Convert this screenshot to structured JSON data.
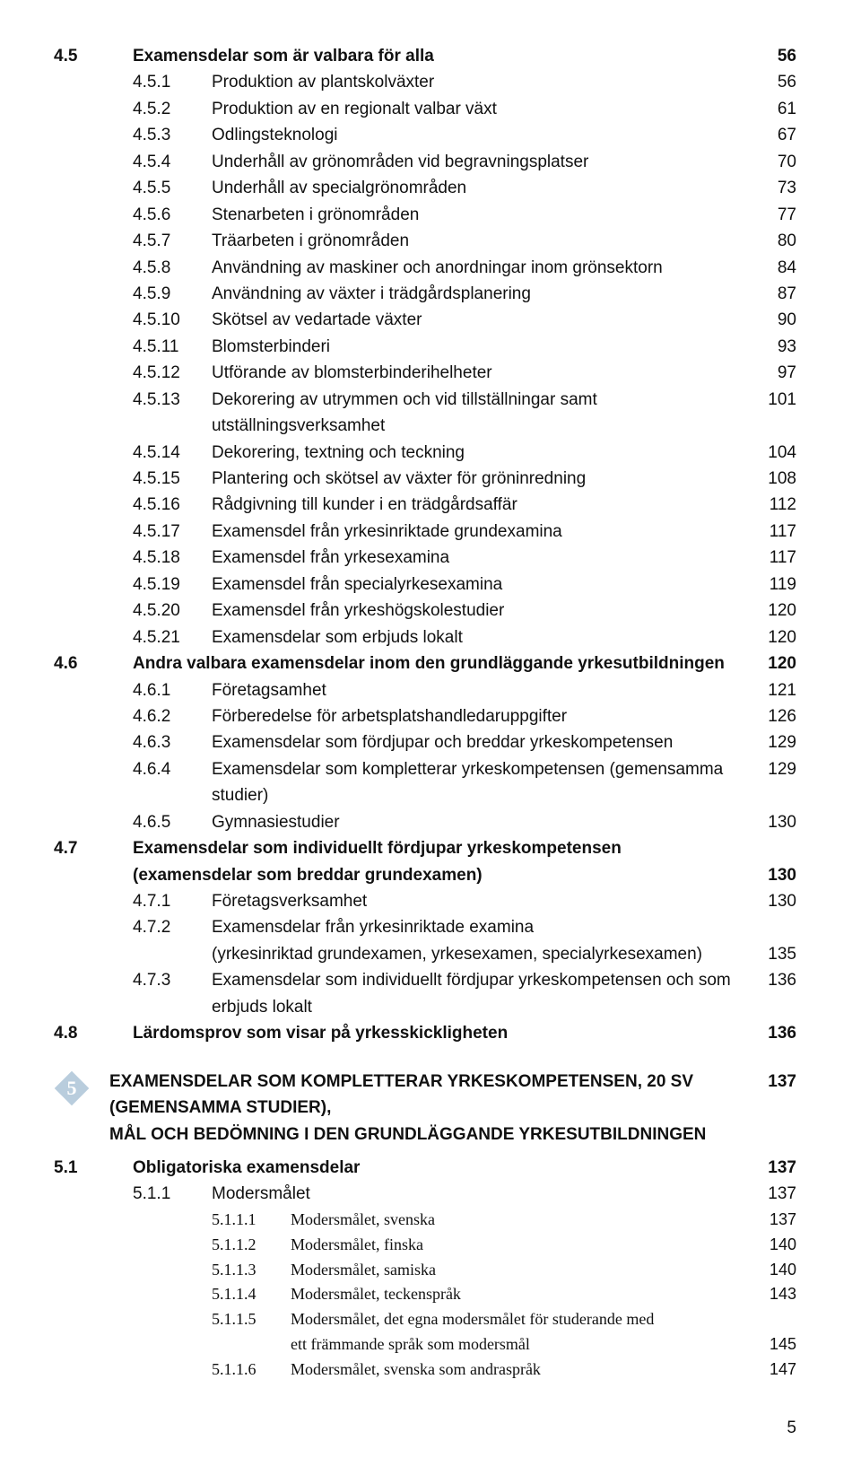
{
  "toc": [
    {
      "lvl": 1,
      "bold": true,
      "num": "4.5",
      "title": "Examensdelar som är valbara för alla",
      "page": "56"
    },
    {
      "lvl": 2,
      "num": "4.5.1",
      "title": "Produktion av plantskolväxter",
      "page": "56"
    },
    {
      "lvl": 2,
      "num": "4.5.2",
      "title": "Produktion av en regionalt valbar växt",
      "page": "61"
    },
    {
      "lvl": 2,
      "num": "4.5.3",
      "title": "Odlingsteknologi",
      "page": "67"
    },
    {
      "lvl": 2,
      "num": "4.5.4",
      "title": "Underhåll av grönområden vid begravningsplatser",
      "page": "70"
    },
    {
      "lvl": 2,
      "num": "4.5.5",
      "title": "Underhåll av specialgrönområden",
      "page": "73"
    },
    {
      "lvl": 2,
      "num": "4.5.6",
      "title": "Stenarbeten i grönområden",
      "page": "77"
    },
    {
      "lvl": 2,
      "num": "4.5.7",
      "title": "Träarbeten i grönområden",
      "page": "80"
    },
    {
      "lvl": 2,
      "num": "4.5.8",
      "title": "Användning av maskiner och anordningar inom grönsektorn",
      "page": "84"
    },
    {
      "lvl": 2,
      "num": "4.5.9",
      "title": "Användning av växter i trädgårdsplanering",
      "page": "87"
    },
    {
      "lvl": 2,
      "num": "4.5.10",
      "title": "Skötsel av vedartade växter",
      "page": "90"
    },
    {
      "lvl": 2,
      "num": "4.5.11",
      "title": "Blomsterbinderi",
      "page": "93"
    },
    {
      "lvl": 2,
      "num": "4.5.12",
      "title": "Utförande av blomsterbinderihelheter",
      "page": "97"
    },
    {
      "lvl": 2,
      "num": "4.5.13",
      "title": "Dekorering av utrymmen och vid tillställningar samt utställningsverksamhet",
      "page": "101"
    },
    {
      "lvl": 2,
      "num": "4.5.14",
      "title": "Dekorering, textning och teckning",
      "page": "104"
    },
    {
      "lvl": 2,
      "num": "4.5.15",
      "title": "Plantering och skötsel av växter för gröninredning",
      "page": "108"
    },
    {
      "lvl": 2,
      "num": "4.5.16",
      "title": "Rådgivning till kunder i en trädgårdsaffär",
      "page": "112"
    },
    {
      "lvl": 2,
      "num": "4.5.17",
      "title": "Examensdel från yrkesinriktade grundexamina",
      "page": "117"
    },
    {
      "lvl": 2,
      "num": "4.5.18",
      "title": "Examensdel från yrkesexamina",
      "page": "117"
    },
    {
      "lvl": 2,
      "num": "4.5.19",
      "title": "Examensdel från specialyrkesexamina",
      "page": "119"
    },
    {
      "lvl": 2,
      "num": "4.5.20",
      "title": "Examensdel från yrkeshögskolestudier",
      "page": "120"
    },
    {
      "lvl": 2,
      "num": "4.5.21",
      "title": "Examensdelar som erbjuds lokalt",
      "page": "120"
    },
    {
      "lvl": 1,
      "bold": true,
      "num": "4.6",
      "title": "Andra valbara examensdelar inom den grundläggande yrkesutbildningen",
      "page": "120"
    },
    {
      "lvl": 2,
      "num": "4.6.1",
      "title": "Företagsamhet",
      "page": "121"
    },
    {
      "lvl": 2,
      "num": "4.6.2",
      "title": "Förberedelse för arbetsplatshandledaruppgifter",
      "page": "126"
    },
    {
      "lvl": 2,
      "num": "4.6.3",
      "title": "Examensdelar som fördjupar och breddar yrkeskompetensen",
      "page": "129"
    },
    {
      "lvl": 2,
      "num": "4.6.4",
      "title": "Examensdelar som kompletterar yrkeskompetensen (gemensamma studier)",
      "page": "129"
    },
    {
      "lvl": 2,
      "num": "4.6.5",
      "title": "Gymnasiestudier",
      "page": "130"
    },
    {
      "lvl": 1,
      "bold": true,
      "num": "4.7",
      "title": "Examensdelar som individuellt fördjupar yrkeskompetensen",
      "page": ""
    },
    {
      "lvl": 1,
      "bold": true,
      "cont": true,
      "title": "(examensdelar som breddar grundexamen)",
      "page": "130"
    },
    {
      "lvl": 2,
      "num": "4.7.1",
      "title": "Företagsverksamhet",
      "page": "130"
    },
    {
      "lvl": 2,
      "num": "4.7.2",
      "title": "Examensdelar från yrkesinriktade examina",
      "page": ""
    },
    {
      "lvl": 2,
      "cont": true,
      "title": "(yrkesinriktad grundexamen, yrkesexamen, specialyrkesexamen)",
      "page": "135"
    },
    {
      "lvl": 2,
      "num": "4.7.3",
      "title": "Examensdelar som individuellt fördjupar yrkeskompetensen och som erbjuds lokalt",
      "page": "136"
    },
    {
      "lvl": 1,
      "bold": true,
      "num": "4.8",
      "title": "Lärdomsprov som visar på yrkesskickligheten",
      "page": "136"
    }
  ],
  "chapter": {
    "badge_number": "5",
    "badge_fill": "#b9cddd",
    "badge_stroke": "#ffffff",
    "badge_text_color": "#ffffff",
    "title_lines": [
      "EXAMENSDELAR SOM KOMPLETTERAR YRKESKOMPETENSEN, 20 SV (GEMENSAMMA STUDIER),",
      "MÅL OCH BEDÖMNING I DEN GRUNDLÄGGANDE YRKESUTBILDNINGEN"
    ],
    "page": "137"
  },
  "toc2": [
    {
      "lvl": 1,
      "bold": true,
      "num": "5.1",
      "title": "Obligatoriska examensdelar",
      "page": "137"
    },
    {
      "lvl": 2,
      "num": "5.1.1",
      "title": "Modersmålet",
      "page": "137"
    },
    {
      "lvl": 3,
      "serif": true,
      "num": "5.1.1.1",
      "title": "Modersmålet, svenska",
      "page": "137"
    },
    {
      "lvl": 3,
      "serif": true,
      "num": "5.1.1.2",
      "title": "Modersmålet, finska",
      "page": "140"
    },
    {
      "lvl": 3,
      "serif": true,
      "num": "5.1.1.3",
      "title": "Modersmålet, samiska",
      "page": "140"
    },
    {
      "lvl": 3,
      "serif": true,
      "num": "5.1.1.4",
      "title": "Modersmålet, teckenspråk",
      "page": "143"
    },
    {
      "lvl": 3,
      "serif": true,
      "num": "5.1.1.5",
      "title": "Modersmålet, det egna modersmålet för studerande med",
      "page": ""
    },
    {
      "lvl": 3,
      "serif": true,
      "cont": true,
      "title": "ett främmande språk som modersmål",
      "page": "145"
    },
    {
      "lvl": 3,
      "serif": true,
      "num": "5.1.1.6",
      "title": "Modersmålet, svenska som andraspråk",
      "page": "147"
    }
  ],
  "page_number": "5"
}
